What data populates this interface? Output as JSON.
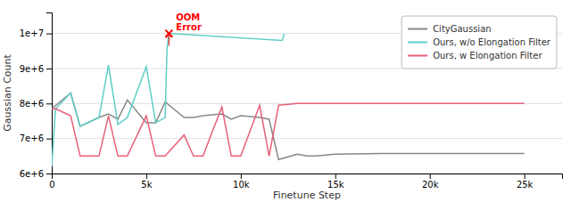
{
  "chart_data": {
    "type": "line",
    "xlabel": "Finetune Step",
    "ylabel": "Gaussian Count",
    "xlim": [
      0,
      27000
    ],
    "ylim": [
      6000000,
      10600000
    ],
    "xticks": [
      0,
      {
        "value": 5000,
        "label": "5k"
      },
      {
        "value": 10000,
        "label": "10k"
      },
      {
        "value": 15000,
        "label": "15k"
      },
      {
        "value": 20000,
        "label": "20k"
      },
      {
        "value": 25000,
        "label": "25k"
      }
    ],
    "yticks": [
      {
        "value": 6000000,
        "label": "6e+6"
      },
      {
        "value": 7000000,
        "label": "7e+6"
      },
      {
        "value": 8000000,
        "label": "8e+6"
      },
      {
        "value": 9000000,
        "label": "9e+6"
      },
      {
        "value": 10000000,
        "label": "1e+7"
      }
    ],
    "grid": "y",
    "legend": "upper right",
    "series": [
      {
        "name": "CityGaussian",
        "color": "#888888",
        "x": [
          0,
          1000,
          1500,
          2500,
          3000,
          3500,
          4000,
          5000,
          5500,
          6000,
          7000,
          7500,
          8000,
          9000,
          9500,
          10000,
          11000,
          11500,
          12000,
          13000,
          13500,
          14000,
          15000,
          17500,
          20000,
          25000
        ],
        "values": [
          7850000,
          8300000,
          7350000,
          7600000,
          7700000,
          7550000,
          8100000,
          7450000,
          7450000,
          8050000,
          7600000,
          7600000,
          7650000,
          7700000,
          7550000,
          7650000,
          7600000,
          7550000,
          6400000,
          6550000,
          6500000,
          6500000,
          6550000,
          6570000,
          6570000,
          6570000
        ]
      },
      {
        "name": "Ours, w/o Elongation Filter",
        "color": "#5ecec8",
        "x": [
          0,
          200,
          1000,
          1500,
          2500,
          3000,
          3500,
          4000,
          5000,
          5500,
          6000,
          6100,
          6200,
          12200,
          12300
        ],
        "values": [
          6200000,
          7850000,
          8300000,
          7350000,
          7600000,
          9100000,
          7400000,
          7600000,
          9050000,
          7450000,
          7600000,
          9600000,
          10000000,
          9800000,
          10000000
        ]
      },
      {
        "name": "Ours, w Elongation Filter",
        "color": "#e8607a",
        "x": [
          0,
          200,
          1000,
          1500,
          2500,
          3000,
          3500,
          4000,
          5000,
          5500,
          6000,
          7000,
          7500,
          8000,
          9000,
          9500,
          10000,
          11000,
          11500,
          12000,
          13000,
          13500,
          14000,
          15000,
          17500,
          20000,
          25000
        ],
        "values": [
          7850000,
          7850000,
          7650000,
          6500000,
          6500000,
          7650000,
          6500000,
          6500000,
          7650000,
          6500000,
          6500000,
          7100000,
          6500000,
          6500000,
          7900000,
          6500000,
          6500000,
          7950000,
          6500000,
          7950000,
          8000000,
          8000000,
          8000000,
          8000000,
          8000000,
          8000000,
          8000000
        ]
      }
    ],
    "annotations": [
      {
        "text": "OOM\nError",
        "x": 6200,
        "y": 10000000,
        "arrow_start_y": 9650000,
        "color": "red",
        "marker": "x"
      }
    ]
  }
}
